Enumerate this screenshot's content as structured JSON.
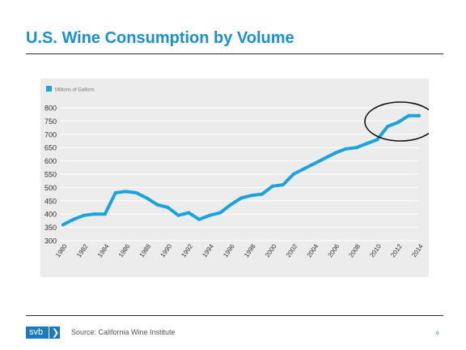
{
  "slide": {
    "title": "U.S. Wine Consumption by Volume",
    "source": "Source: California Wine Institute",
    "page_number": "6"
  },
  "logo": {
    "text": "svb",
    "chevron": "❯"
  },
  "colors": {
    "title": "#1a8fd6",
    "line": "#1aa3dc",
    "panel": "#ececec",
    "grid": "#ffffff",
    "logo": "#1b79c2"
  },
  "chart_data": {
    "type": "line",
    "title": "",
    "xlabel": "",
    "ylabel": "",
    "legend": "top-left",
    "grid": true,
    "ylim": [
      300,
      800
    ],
    "y_ticks": [
      800,
      750,
      700,
      650,
      600,
      550,
      500,
      450,
      400,
      350,
      300
    ],
    "x_ticks": [
      "1980",
      "1982",
      "1984",
      "1986",
      "1988",
      "1990",
      "1992",
      "1994",
      "1996",
      "1998",
      "2000",
      "2002",
      "2004",
      "2006",
      "2008",
      "2010",
      "2012",
      "2014"
    ],
    "series": [
      {
        "name": "Millions of Gallons",
        "x": [
          1980,
          1981,
          1982,
          1983,
          1984,
          1985,
          1986,
          1987,
          1988,
          1989,
          1990,
          1991,
          1992,
          1993,
          1994,
          1995,
          1996,
          1997,
          1998,
          1999,
          2000,
          2001,
          2002,
          2003,
          2004,
          2005,
          2006,
          2007,
          2008,
          2009,
          2010,
          2011,
          2012,
          2013,
          2014
        ],
        "values": [
          360,
          380,
          395,
          400,
          400,
          480,
          485,
          480,
          460,
          435,
          425,
          395,
          405,
          380,
          395,
          405,
          435,
          460,
          470,
          475,
          505,
          510,
          550,
          570,
          590,
          610,
          630,
          645,
          650,
          665,
          680,
          730,
          745,
          770,
          770
        ]
      }
    ],
    "annotations": [
      {
        "type": "ellipse",
        "target": "2011-2014 plateau"
      }
    ]
  }
}
